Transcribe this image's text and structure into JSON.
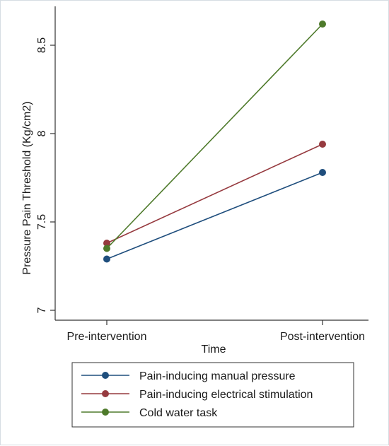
{
  "chart_data": {
    "type": "line",
    "xlabel": "Time",
    "ylabel": "Pressure Pain Threshold (Kg/cm2)",
    "categories": [
      "Pre-intervention",
      "Post-intervention"
    ],
    "ylim": [
      7,
      8.6
    ],
    "yticks": [
      7,
      7.5,
      8,
      8.5
    ],
    "ytick_labels": [
      "7",
      "7.5",
      "8",
      "8.5"
    ],
    "grid": false,
    "legend_position": "bottom",
    "series": [
      {
        "name": "Pain-inducing manual pressure",
        "values": [
          7.29,
          7.78
        ],
        "color": "#1f4e7d"
      },
      {
        "name": "Pain-inducing electrical stimulation",
        "values": [
          7.38,
          7.94
        ],
        "color": "#963a3f"
      },
      {
        "name": "Cold water task",
        "values": [
          7.35,
          8.62
        ],
        "color": "#4e7a2b"
      }
    ]
  }
}
